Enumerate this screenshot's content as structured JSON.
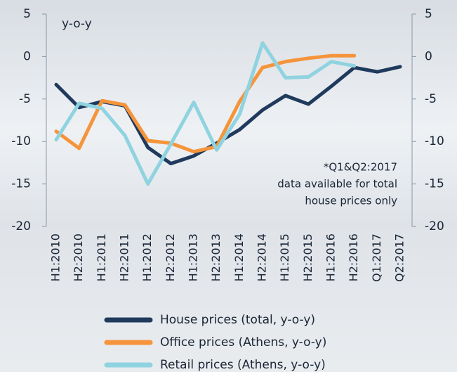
{
  "chart_data": {
    "type": "line",
    "y_annotation": "y-o-y",
    "note": [
      "*Q1&Q2:2017",
      "data available for total",
      "house prices only"
    ],
    "categories": [
      "H1:2010",
      "H2:2010",
      "H1:2011",
      "H2:2011",
      "H1:2012",
      "H2:2012",
      "H1:2013",
      "H2:2013",
      "H1:2014",
      "H2:2014",
      "H1:2015",
      "H2:2015",
      "H1:2016",
      "H2:2016",
      "Q1:2017",
      "Q2:2017"
    ],
    "series": [
      {
        "name": "House prices (total, y-o-y)",
        "color": "#1f3a5c",
        "values": [
          -3.3,
          -6.0,
          -5.3,
          -5.8,
          -10.7,
          -12.6,
          -11.7,
          -10.2,
          -8.6,
          -6.3,
          -4.6,
          -5.6,
          -3.5,
          -1.3,
          -1.8,
          -1.2
        ]
      },
      {
        "name": "Office prices (Athens, y-o-y)",
        "color": "#f5943a",
        "values": [
          -8.8,
          -10.8,
          -5.2,
          -5.7,
          -9.9,
          -10.2,
          -11.2,
          -10.6,
          -5.3,
          -1.3,
          -0.6,
          -0.2,
          0.1,
          0.1,
          null,
          null
        ]
      },
      {
        "name": "Retail prices (Athens, y-o-y)",
        "color": "#8fd3e0",
        "values": [
          -9.8,
          -5.5,
          -6.1,
          -9.3,
          -15.0,
          -10.3,
          -5.4,
          -11.0,
          -6.8,
          1.6,
          -2.5,
          -2.4,
          -0.6,
          -1.1,
          null,
          null
        ]
      }
    ],
    "ylim": [
      -20,
      5
    ],
    "yticks": [
      5,
      0,
      -5,
      -10,
      -15,
      -20
    ],
    "y2lim": [
      -20,
      5
    ],
    "y2ticks": [
      5,
      0,
      -5,
      -10,
      -15,
      -20
    ]
  }
}
